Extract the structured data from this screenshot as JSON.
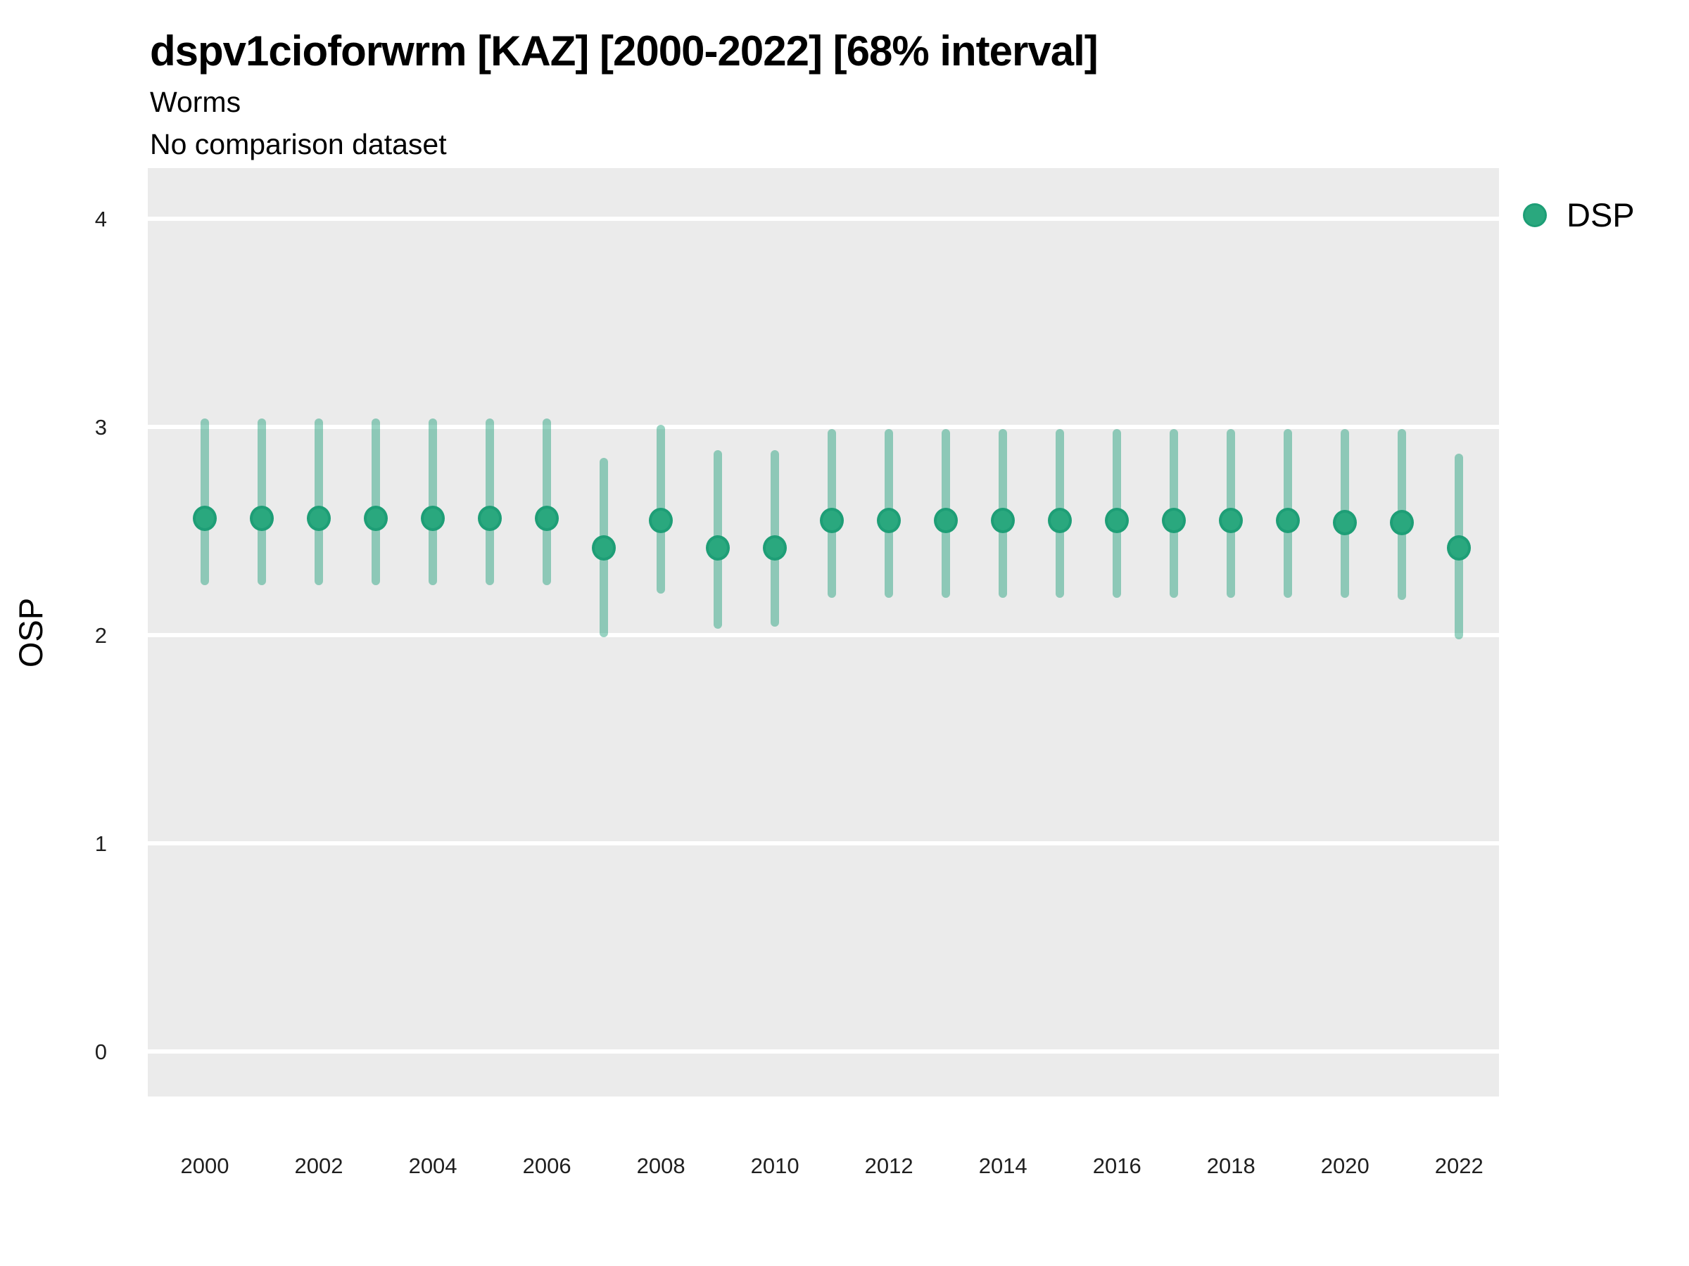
{
  "header": {
    "title": "dspv1cioforwrm [KAZ] [2000-2022] [68% interval]",
    "subtitle": "Worms",
    "note": "No comparison dataset"
  },
  "axes": {
    "y_title": "OSP",
    "x_title": ""
  },
  "legend": {
    "position": "right",
    "items": [
      {
        "label": "DSP",
        "color": "#2AA87E"
      }
    ]
  },
  "colors": {
    "panel_bg": "#EBEBEB",
    "gridline": "#FFFFFF",
    "point_fill": "#2AA87E",
    "point_stroke": "#1E9E76",
    "interval_bar": "rgba(27,158,119,0.45)",
    "title_text": "#000000",
    "tick_text": "#1F1F1F"
  },
  "chart_data": {
    "type": "scatter",
    "subtype": "pointrange-errorbar",
    "title": "dspv1cioforwrm [KAZ] [2000-2022] [68% interval]",
    "subtitle": "Worms",
    "note": "No comparison dataset",
    "xlabel": "",
    "ylabel": "OSP",
    "interval_level": "68%",
    "grid": "major-y white lines on grey panel, no minor gridlines",
    "legend_position": "right",
    "x_ticks": [
      2000,
      2002,
      2004,
      2006,
      2008,
      2010,
      2012,
      2014,
      2016,
      2018,
      2020,
      2022
    ],
    "y_ticks": [
      0,
      1,
      2,
      3,
      4
    ],
    "xlim": [
      1999.0,
      2022.7
    ],
    "ylim": [
      -0.216,
      4.243
    ],
    "series": [
      {
        "name": "DSP",
        "points": [
          {
            "x": 2000,
            "y": 2.56,
            "lo": 2.24,
            "hi": 3.04
          },
          {
            "x": 2001,
            "y": 2.56,
            "lo": 2.24,
            "hi": 3.04
          },
          {
            "x": 2002,
            "y": 2.56,
            "lo": 2.24,
            "hi": 3.04
          },
          {
            "x": 2003,
            "y": 2.56,
            "lo": 2.24,
            "hi": 3.04
          },
          {
            "x": 2004,
            "y": 2.56,
            "lo": 2.24,
            "hi": 3.04
          },
          {
            "x": 2005,
            "y": 2.56,
            "lo": 2.24,
            "hi": 3.04
          },
          {
            "x": 2006,
            "y": 2.56,
            "lo": 2.24,
            "hi": 3.04
          },
          {
            "x": 2007,
            "y": 2.42,
            "lo": 1.99,
            "hi": 2.85
          },
          {
            "x": 2008,
            "y": 2.55,
            "lo": 2.2,
            "hi": 3.01
          },
          {
            "x": 2009,
            "y": 2.42,
            "lo": 2.03,
            "hi": 2.89
          },
          {
            "x": 2010,
            "y": 2.42,
            "lo": 2.04,
            "hi": 2.89
          },
          {
            "x": 2011,
            "y": 2.55,
            "lo": 2.18,
            "hi": 2.99
          },
          {
            "x": 2012,
            "y": 2.55,
            "lo": 2.18,
            "hi": 2.99
          },
          {
            "x": 2013,
            "y": 2.55,
            "lo": 2.18,
            "hi": 2.99
          },
          {
            "x": 2014,
            "y": 2.55,
            "lo": 2.18,
            "hi": 2.99
          },
          {
            "x": 2015,
            "y": 2.55,
            "lo": 2.18,
            "hi": 2.99
          },
          {
            "x": 2016,
            "y": 2.55,
            "lo": 2.18,
            "hi": 2.99
          },
          {
            "x": 2017,
            "y": 2.55,
            "lo": 2.18,
            "hi": 2.99
          },
          {
            "x": 2018,
            "y": 2.55,
            "lo": 2.18,
            "hi": 2.99
          },
          {
            "x": 2019,
            "y": 2.55,
            "lo": 2.18,
            "hi": 2.99
          },
          {
            "x": 2020,
            "y": 2.54,
            "lo": 2.18,
            "hi": 2.99
          },
          {
            "x": 2021,
            "y": 2.54,
            "lo": 2.17,
            "hi": 2.99
          },
          {
            "x": 2022,
            "y": 2.42,
            "lo": 1.98,
            "hi": 2.87
          }
        ]
      }
    ]
  }
}
